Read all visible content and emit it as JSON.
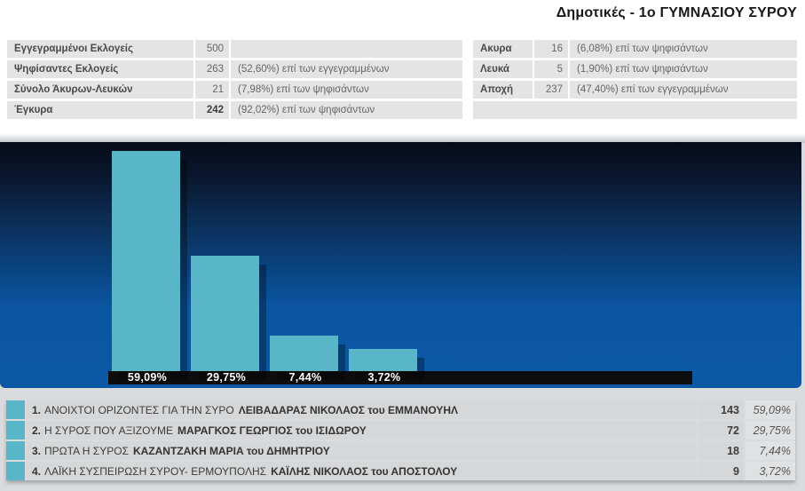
{
  "title": "Δημοτικές - 1ο ΓΥΜΝΑΣΙΟΥ ΣΥΡΟΥ",
  "summary_left": [
    {
      "label": "Εγγεγραμμένοι Εκλογείς",
      "value": "500",
      "note": "",
      "bold_value": false
    },
    {
      "label": "Ψηφίσαντες Εκλογείς",
      "value": "263",
      "note": "(52,60%) επί των εγγεγραμμένων",
      "bold_value": false
    },
    {
      "label": "Σύνολο Άκυρων-Λευκών",
      "value": "21",
      "note": "(7,98%) επί των ψηφισάντων",
      "bold_value": false
    },
    {
      "label": "Έγκυρα",
      "value": "242",
      "note": "(92,02%) επί των ψηφισάντων",
      "bold_value": true
    }
  ],
  "summary_right": [
    {
      "label": "Ακυρα",
      "value": "16",
      "note": "(6,08%) επί των ψηφισάντων",
      "bold_value": false
    },
    {
      "label": "Λευκά",
      "value": "5",
      "note": "(1,90%) επί των ψηφισάντων",
      "bold_value": false
    },
    {
      "label": "Αποχή",
      "value": "237",
      "note": "(47,40%) επί των εγγεγραμμένων",
      "bold_value": false
    },
    {
      "empty": true
    }
  ],
  "chart_data": {
    "type": "bar",
    "title": "",
    "categories": [
      "ΑΝΟΙΧΤΟΙ ΟΡΙΖΟΝΤΕΣ ΓΙΑ ΤΗΝ ΣΥΡΟ",
      "Η ΣΥΡΟΣ ΠΟΥ ΑΞΙΖΟΥΜΕ",
      "ΠΡΩΤΑ Η ΣΥΡΟΣ",
      "ΛΑΪΚΗ ΣΥΣΠΕΙΡΩΣΗ ΣΥΡΟΥ- ΕΡΜΟΥΠΟΛΗΣ"
    ],
    "values": [
      59.09,
      29.75,
      7.44,
      3.72
    ],
    "value_labels": [
      "59,09%",
      "29,75%",
      "7,44%",
      "3,72%"
    ],
    "xlabel": "",
    "ylabel": "",
    "ylim": [
      0,
      62
    ],
    "grid": false,
    "legend": false,
    "bar_color": "#58b6c8",
    "background_top": "#060b18",
    "background_bottom": "#0b58a4",
    "axis_strip_color": "#0d0d0d"
  },
  "results": [
    {
      "rank": "1.",
      "party": "ΑΝΟΙΧΤΟΙ ΟΡΙΖΟΝΤΕΣ ΓΙΑ ΤΗΝ ΣΥΡΟ",
      "candidate": "ΛΕΙΒΑΔΑΡΑΣ ΝΙΚΟΛΑΟΣ του ΕΜΜΑΝΟΥΗΛ",
      "votes": "143",
      "percent": "59,09%",
      "color": "#58b6c8"
    },
    {
      "rank": "2.",
      "party": "Η ΣΥΡΟΣ ΠΟΥ ΑΞΙΖΟΥΜΕ",
      "candidate": "ΜΑΡΑΓΚΟΣ ΓΕΩΡΓΙΟΣ του ΙΣΙΔΩΡΟΥ",
      "votes": "72",
      "percent": "29,75%",
      "color": "#58b6c8"
    },
    {
      "rank": "3.",
      "party": "ΠΡΩΤΑ Η ΣΥΡΟΣ",
      "candidate": "ΚΑΖΑΝΤΖΑΚΗ ΜΑΡΙΑ του ΔΗΜΗΤΡΙΟΥ",
      "votes": "18",
      "percent": "7,44%",
      "color": "#58b6c8"
    },
    {
      "rank": "4.",
      "party": "ΛΑΪΚΗ ΣΥΣΠΕΙΡΩΣΗ ΣΥΡΟΥ- ΕΡΜΟΥΠΟΛΗΣ",
      "candidate": "ΚΑΪΛΗΣ ΝΙΚΟΛΑΟΣ του ΑΠΟΣΤΟΛΟΥ",
      "votes": "9",
      "percent": "3,72%",
      "color": "#58b6c8"
    }
  ],
  "colors": {
    "bar": "#58b6c8",
    "summary_row_bg": "#e4e4e4",
    "result_row_bg": "#d5d7d9",
    "result_pct_bg": "#dfe1e3",
    "lower_section_bg": "#d9dbdd",
    "axis_strip": "#0d0d0d"
  }
}
